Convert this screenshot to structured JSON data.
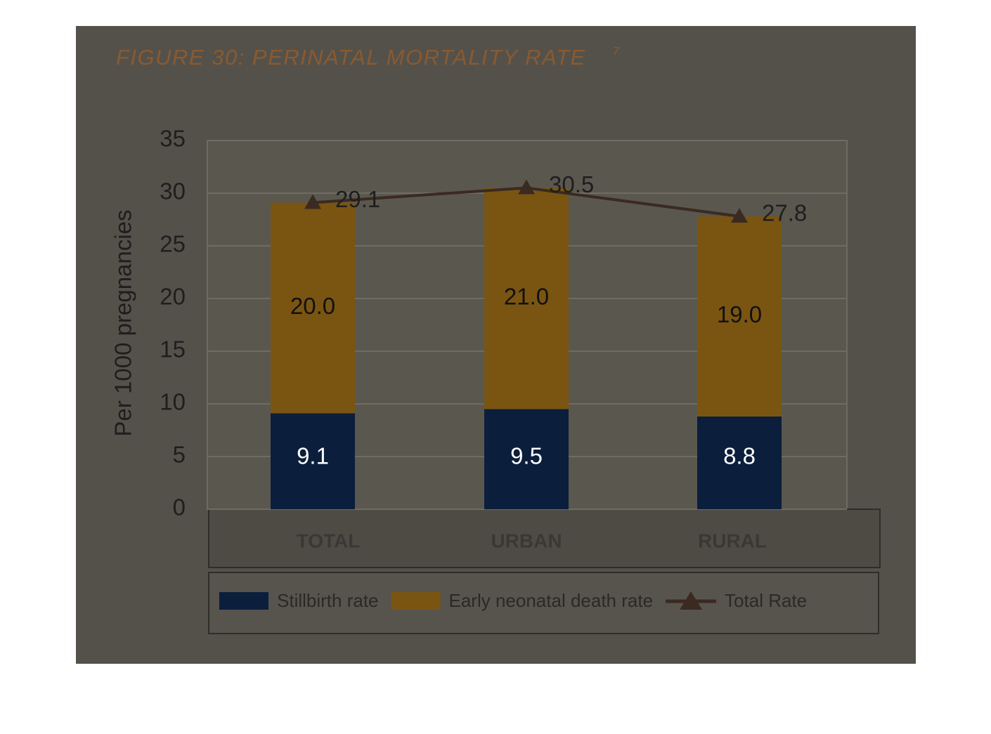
{
  "chart_data": {
    "type": "stacked-bar-line",
    "title": "FIGURE 30: PERINATAL MORTALITY RATE",
    "title_superscript": "7",
    "y_label": "Per 1000 pregnancies",
    "categories": [
      "TOTAL",
      "URBAN",
      "RURAL"
    ],
    "series": [
      {
        "name": "Stillbirth rate",
        "type": "bar",
        "color": "#0b1e3c",
        "values": [
          9.1,
          9.5,
          8.8
        ]
      },
      {
        "name": "Early neonatal death rate",
        "type": "bar",
        "color": "#7a5512",
        "values": [
          20.0,
          21.0,
          19.0
        ],
        "value_labels": [
          "20.0",
          "21.0",
          "19.0"
        ]
      },
      {
        "name": "Total Rate",
        "type": "line",
        "color": "#3a2a21",
        "values": [
          29.1,
          30.5,
          27.8
        ]
      }
    ],
    "ylim": [
      0,
      35
    ],
    "yticks": [
      0,
      5,
      10,
      15,
      20,
      25,
      30,
      35
    ],
    "grid": true,
    "legend": "bottom"
  }
}
